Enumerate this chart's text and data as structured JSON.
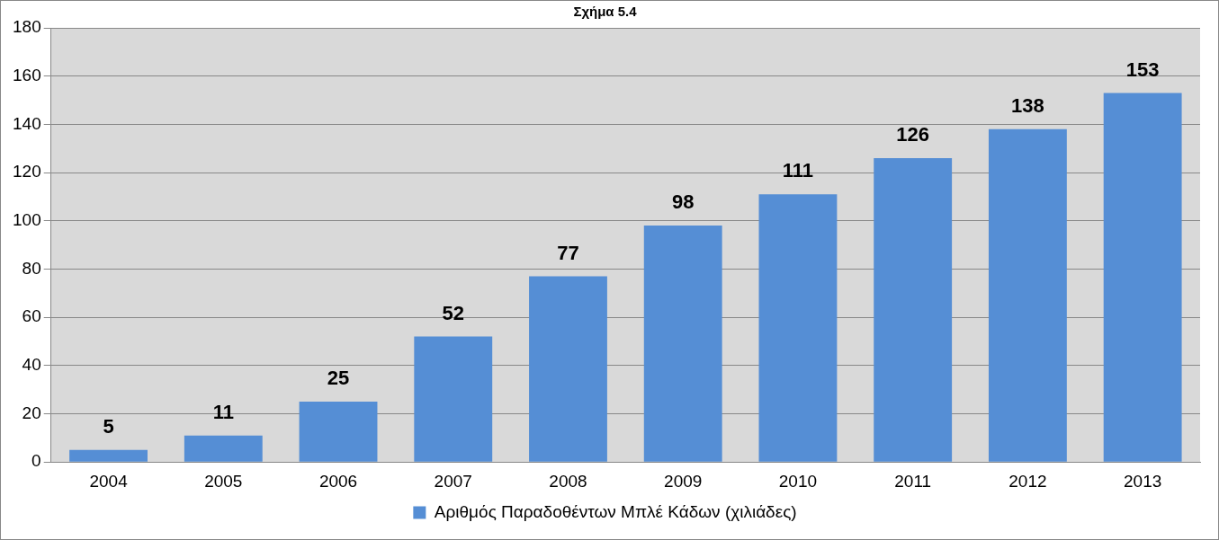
{
  "chart_data": {
    "type": "bar",
    "title": "Σχήμα 5.4",
    "categories": [
      "2004",
      "2005",
      "2006",
      "2007",
      "2008",
      "2009",
      "2010",
      "2011",
      "2012",
      "2013"
    ],
    "series": [
      {
        "name": "Αριθμός Παραδοθέντων Μπλέ Κάδων (χιλιάδες)",
        "color": "#558ed5",
        "values": [
          5,
          11,
          25,
          52,
          77,
          98,
          111,
          126,
          138,
          153
        ]
      }
    ],
    "ylim": [
      0,
      180
    ],
    "yticks": [
      0,
      20,
      40,
      60,
      80,
      100,
      120,
      140,
      160,
      180
    ],
    "grid": "y",
    "legend": "bottom",
    "data_labels": true
  }
}
